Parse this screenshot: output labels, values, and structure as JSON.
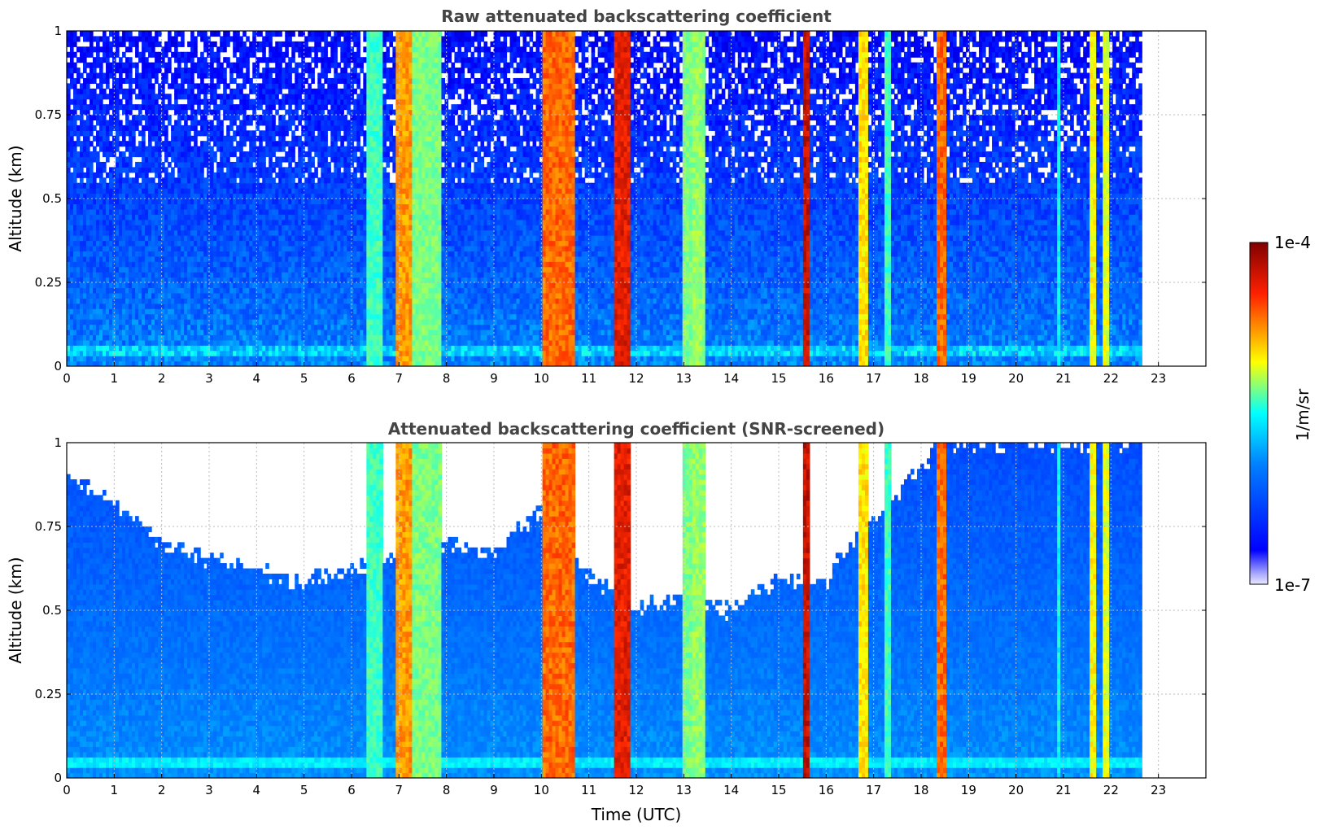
{
  "figure": {
    "colorbar": {
      "label": "1/m/sr",
      "max_label": "1e-4",
      "min_label": "1e-7",
      "scale": "log",
      "colormap": "jet",
      "range": [
        1e-07,
        0.0001
      ]
    }
  },
  "chart_data": [
    {
      "type": "heatmap",
      "title": "Raw attenuated backscattering coefficient",
      "xlabel": "",
      "ylabel": "Altitude (km)",
      "xlim": [
        0,
        24
      ],
      "ylim": [
        0,
        1
      ],
      "x_ticks": [
        "0",
        "1",
        "2",
        "3",
        "4",
        "5",
        "6",
        "7",
        "8",
        "9",
        "10",
        "11",
        "12",
        "13",
        "14",
        "15",
        "16",
        "17",
        "18",
        "19",
        "20",
        "21",
        "22",
        "23"
      ],
      "y_ticks": [
        "0",
        "0.25",
        "0.5",
        "0.75",
        "1"
      ],
      "grid": true,
      "data_end_time": 22.65,
      "screened": false,
      "background_level": 0.25,
      "bands": [
        {
          "start": 6.3,
          "end": 6.65,
          "level": 0.55
        },
        {
          "start": 6.9,
          "end": 7.3,
          "level": 0.78
        },
        {
          "start": 7.3,
          "end": 7.9,
          "level": 0.6
        },
        {
          "start": 10.05,
          "end": 10.7,
          "level": 0.82
        },
        {
          "start": 11.55,
          "end": 11.9,
          "level": 0.9
        },
        {
          "start": 12.95,
          "end": 13.15,
          "level": 0.6
        },
        {
          "start": 13.2,
          "end": 13.45,
          "level": 0.62
        },
        {
          "start": 15.5,
          "end": 15.65,
          "level": 0.93
        },
        {
          "start": 16.7,
          "end": 16.9,
          "level": 0.72
        },
        {
          "start": 17.25,
          "end": 17.35,
          "level": 0.55
        },
        {
          "start": 18.35,
          "end": 18.5,
          "level": 0.82
        },
        {
          "start": 20.85,
          "end": 20.95,
          "level": 0.5
        },
        {
          "start": 21.55,
          "end": 21.7,
          "level": 0.7
        },
        {
          "start": 21.85,
          "end": 21.95,
          "level": 0.68
        }
      ]
    },
    {
      "type": "heatmap",
      "title": "Attenuated backscattering coefficient (SNR-screened)",
      "xlabel": "Time (UTC)",
      "ylabel": "Altitude (km)",
      "xlim": [
        0,
        24
      ],
      "ylim": [
        0,
        1
      ],
      "x_ticks": [
        "0",
        "1",
        "2",
        "3",
        "4",
        "5",
        "6",
        "7",
        "8",
        "9",
        "10",
        "11",
        "12",
        "13",
        "14",
        "15",
        "16",
        "17",
        "18",
        "19",
        "20",
        "21",
        "22",
        "23"
      ],
      "y_ticks": [
        "0",
        "0.25",
        "0.5",
        "0.75",
        "1"
      ],
      "grid": true,
      "data_end_time": 22.65,
      "screened": true,
      "background_level": 0.27,
      "bands": [
        {
          "start": 6.3,
          "end": 6.65,
          "level": 0.55
        },
        {
          "start": 6.9,
          "end": 7.3,
          "level": 0.78
        },
        {
          "start": 7.3,
          "end": 7.9,
          "level": 0.6
        },
        {
          "start": 10.05,
          "end": 10.7,
          "level": 0.82
        },
        {
          "start": 11.55,
          "end": 11.9,
          "level": 0.9
        },
        {
          "start": 12.95,
          "end": 13.15,
          "level": 0.6
        },
        {
          "start": 13.2,
          "end": 13.45,
          "level": 0.62
        },
        {
          "start": 15.5,
          "end": 15.65,
          "level": 0.93
        },
        {
          "start": 16.7,
          "end": 16.9,
          "level": 0.72
        },
        {
          "start": 17.25,
          "end": 17.35,
          "level": 0.55
        },
        {
          "start": 18.35,
          "end": 18.5,
          "level": 0.82
        },
        {
          "start": 20.85,
          "end": 20.95,
          "level": 0.5
        },
        {
          "start": 21.55,
          "end": 21.7,
          "level": 0.7
        },
        {
          "start": 21.85,
          "end": 21.95,
          "level": 0.68
        }
      ],
      "screened_ceiling_profile": [
        {
          "time": 0,
          "altitude": 0.9
        },
        {
          "time": 1,
          "altitude": 0.82
        },
        {
          "time": 2,
          "altitude": 0.7
        },
        {
          "time": 3,
          "altitude": 0.65
        },
        {
          "time": 4,
          "altitude": 0.62
        },
        {
          "time": 5,
          "altitude": 0.58
        },
        {
          "time": 6,
          "altitude": 0.62
        },
        {
          "time": 8,
          "altitude": 0.7
        },
        {
          "time": 9,
          "altitude": 0.68
        },
        {
          "time": 10,
          "altitude": 0.8
        },
        {
          "time": 11,
          "altitude": 0.6
        },
        {
          "time": 12,
          "altitude": 0.5
        },
        {
          "time": 13,
          "altitude": 0.55
        },
        {
          "time": 14,
          "altitude": 0.5
        },
        {
          "time": 15,
          "altitude": 0.6
        },
        {
          "time": 16,
          "altitude": 0.58
        },
        {
          "time": 16.5,
          "altitude": 0.7
        },
        {
          "time": 17.5,
          "altitude": 0.85
        },
        {
          "time": 18.5,
          "altitude": 1.0
        },
        {
          "time": 22.65,
          "altitude": 1.0
        }
      ]
    }
  ]
}
